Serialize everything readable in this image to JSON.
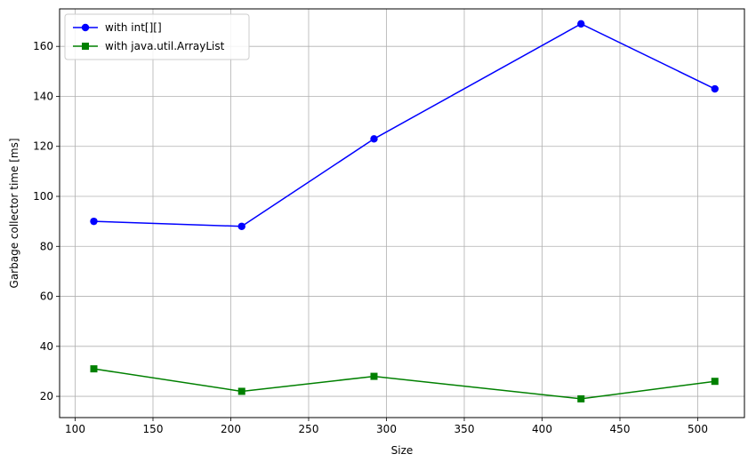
{
  "chart_data": {
    "type": "line",
    "xlabel": "Size",
    "ylabel": "Garbage collector time [ms]",
    "xlim": [
      90,
      530
    ],
    "ylim": [
      11.5,
      175
    ],
    "x_ticks": [
      100,
      150,
      200,
      250,
      300,
      350,
      400,
      450,
      500
    ],
    "y_ticks": [
      20,
      40,
      60,
      80,
      100,
      120,
      140,
      160
    ],
    "grid": true,
    "legend_position": "top-left",
    "series": [
      {
        "name": "with int[][]",
        "color": "#0000ff",
        "marker": "circle",
        "points": [
          {
            "x": 112,
            "y": 90
          },
          {
            "x": 207,
            "y": 88
          },
          {
            "x": 292,
            "y": 123
          },
          {
            "x": 425,
            "y": 169
          },
          {
            "x": 511,
            "y": 143
          }
        ]
      },
      {
        "name": "with java.util.ArrayList",
        "color": "#008000",
        "marker": "square",
        "points": [
          {
            "x": 112,
            "y": 31
          },
          {
            "x": 207,
            "y": 22
          },
          {
            "x": 292,
            "y": 28
          },
          {
            "x": 425,
            "y": 19
          },
          {
            "x": 511,
            "y": 26
          }
        ]
      }
    ]
  }
}
